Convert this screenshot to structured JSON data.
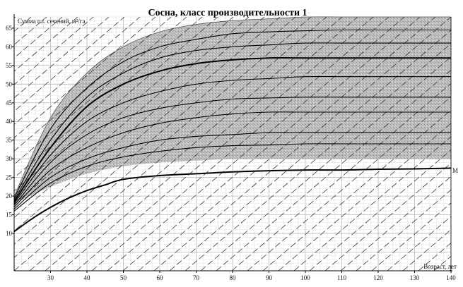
{
  "chart_data": {
    "type": "line",
    "title": "Сосна, класс производительности 1",
    "ylabel": "Сумма пл. сечений, м²/га",
    "xlabel": "Возраст, лет",
    "xlim": [
      20,
      140
    ],
    "ylim": [
      0,
      68
    ],
    "x_ticks": [
      "30",
      "40",
      "50",
      "60",
      "70",
      "80",
      "90",
      "100",
      "110",
      "120",
      "130",
      "140"
    ],
    "y_ticks": [
      "10",
      "15",
      "20",
      "25",
      "30",
      "35",
      "40",
      "45",
      "50",
      "55",
      "60",
      "65"
    ],
    "grid": true,
    "colors": {
      "line": "#000000",
      "band": "#a8a8a8",
      "grid": "#c8c8c8"
    },
    "band": {
      "name": "",
      "x": [
        20,
        30,
        40,
        50,
        60,
        70,
        80,
        90,
        100,
        110,
        120,
        130,
        140
      ],
      "upper": [
        20,
        41,
        53,
        60,
        64,
        66,
        67,
        67.5,
        68,
        68,
        68,
        68,
        68
      ],
      "lower": [
        18,
        22.5,
        26,
        28,
        29,
        29.5,
        30,
        30,
        30,
        30,
        30,
        30,
        30
      ]
    },
    "series": [
      {
        "name": "М",
        "x": [
          20,
          25,
          30,
          35,
          40,
          45,
          50,
          60,
          70,
          80,
          90,
          100,
          110,
          120,
          130,
          140
        ],
        "values": [
          10.5,
          14,
          17,
          19.5,
          21.5,
          23,
          24.5,
          25.5,
          26,
          26.5,
          26.8,
          27,
          27,
          27.2,
          27.3,
          27.5
        ],
        "bold": true
      },
      {
        "name": "",
        "x": [
          20,
          30,
          40,
          50,
          60,
          70,
          80,
          90,
          100,
          110,
          120,
          130,
          140
        ],
        "values": [
          18.5,
          33,
          44,
          50,
          53.5,
          55.5,
          56.5,
          57,
          57,
          57,
          57,
          57,
          57
        ],
        "bold": true
      },
      {
        "name": "",
        "x": [
          20,
          30,
          40,
          50,
          60,
          70,
          80,
          90,
          100,
          110,
          120,
          130,
          140
        ],
        "values": [
          19.5,
          38,
          49,
          56,
          60,
          62,
          63.5,
          64,
          64.3,
          64.5,
          64.5,
          64.5,
          64.5
        ],
        "bold": false
      },
      {
        "name": "",
        "x": [
          20,
          30,
          40,
          50,
          60,
          70,
          80,
          90,
          100,
          110,
          120,
          130,
          140
        ],
        "values": [
          19,
          35,
          46.5,
          53,
          57,
          59,
          60,
          60.5,
          61,
          61,
          61,
          61,
          61
        ],
        "bold": false
      },
      {
        "name": "",
        "x": [
          20,
          30,
          40,
          50,
          60,
          70,
          80,
          90,
          100,
          110,
          120,
          130,
          140
        ],
        "values": [
          18,
          31,
          40,
          45,
          48,
          50,
          51,
          51.5,
          52,
          52,
          52,
          52,
          52
        ],
        "bold": false
      },
      {
        "name": "",
        "x": [
          20,
          30,
          40,
          50,
          60,
          70,
          80,
          90,
          100,
          110,
          120,
          130,
          140
        ],
        "values": [
          17.5,
          29,
          36.5,
          41,
          43.5,
          45,
          46,
          46.3,
          46.5,
          46.5,
          46.5,
          46.5,
          46.5
        ],
        "bold": false
      },
      {
        "name": "",
        "x": [
          20,
          30,
          40,
          50,
          60,
          70,
          80,
          90,
          100,
          110,
          120,
          130,
          140
        ],
        "values": [
          17,
          27,
          33,
          37,
          39.5,
          41,
          42,
          42.5,
          42.5,
          42.5,
          42.5,
          42.5,
          42.5
        ],
        "bold": false
      },
      {
        "name": "",
        "x": [
          20,
          30,
          40,
          50,
          60,
          70,
          80,
          90,
          100,
          110,
          120,
          130,
          140
        ],
        "values": [
          16.5,
          25,
          30,
          33,
          35,
          36,
          36.5,
          37,
          37,
          37,
          37,
          37,
          37
        ],
        "bold": false
      },
      {
        "name": "",
        "x": [
          20,
          30,
          40,
          50,
          60,
          70,
          80,
          90,
          100,
          110,
          120,
          130,
          140
        ],
        "values": [
          16,
          23.5,
          28,
          30.5,
          32,
          33,
          33.5,
          33.7,
          34,
          34,
          34,
          34,
          34
        ],
        "bold": false
      }
    ]
  }
}
